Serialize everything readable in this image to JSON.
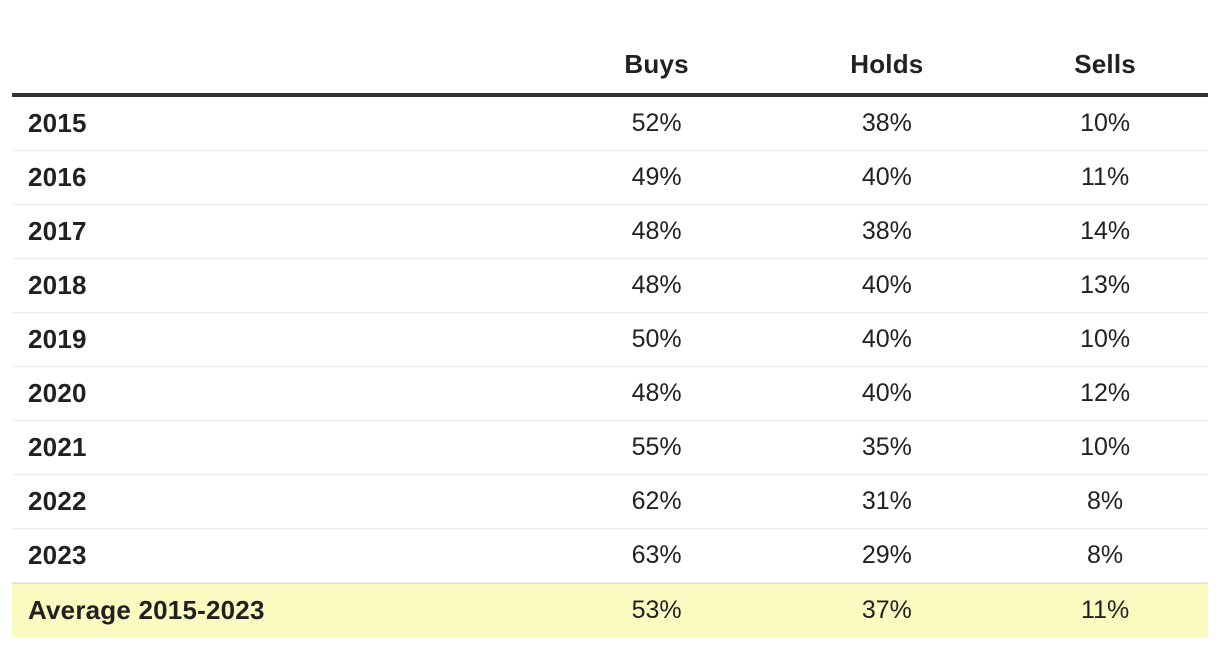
{
  "chart_data": {
    "type": "table",
    "title": "",
    "columns": [
      "",
      "Buys",
      "Holds",
      "Sells"
    ],
    "categories": [
      "2015",
      "2016",
      "2017",
      "2018",
      "2019",
      "2020",
      "2021",
      "2022",
      "2023",
      "Average 2015-2023"
    ],
    "series": [
      {
        "name": "Buys",
        "values": [
          52,
          49,
          48,
          48,
          50,
          48,
          55,
          62,
          63,
          53
        ]
      },
      {
        "name": "Holds",
        "values": [
          38,
          40,
          38,
          40,
          40,
          40,
          35,
          31,
          29,
          37
        ]
      },
      {
        "name": "Sells",
        "values": [
          10,
          11,
          14,
          13,
          10,
          12,
          10,
          8,
          8,
          11
        ]
      }
    ],
    "units": "%",
    "highlight_row": "Average 2015-2023",
    "layout": {
      "grid": "horizontal-row-separators",
      "header_rule": true
    }
  },
  "table": {
    "header": {
      "year": "",
      "buys": "Buys",
      "holds": "Holds",
      "sells": "Sells"
    },
    "rows": [
      {
        "label": "2015",
        "buys": "52%",
        "holds": "38%",
        "sells": "10%"
      },
      {
        "label": "2016",
        "buys": "49%",
        "holds": "40%",
        "sells": "11%"
      },
      {
        "label": "2017",
        "buys": "48%",
        "holds": "38%",
        "sells": "14%"
      },
      {
        "label": "2018",
        "buys": "48%",
        "holds": "40%",
        "sells": "13%"
      },
      {
        "label": "2019",
        "buys": "50%",
        "holds": "40%",
        "sells": "10%"
      },
      {
        "label": "2020",
        "buys": "48%",
        "holds": "40%",
        "sells": "12%"
      },
      {
        "label": "2021",
        "buys": "55%",
        "holds": "35%",
        "sells": "10%"
      },
      {
        "label": "2022",
        "buys": "62%",
        "holds": "31%",
        "sells": "8%"
      },
      {
        "label": "2023",
        "buys": "63%",
        "holds": "29%",
        "sells": "8%"
      },
      {
        "label": "Average 2015-2023",
        "buys": "53%",
        "holds": "37%",
        "sells": "11%"
      }
    ],
    "colors": {
      "highlight_background": "#fbfbc1",
      "header_rule": "#323237",
      "row_separator": "#ebebeb",
      "text": "#212121"
    }
  }
}
